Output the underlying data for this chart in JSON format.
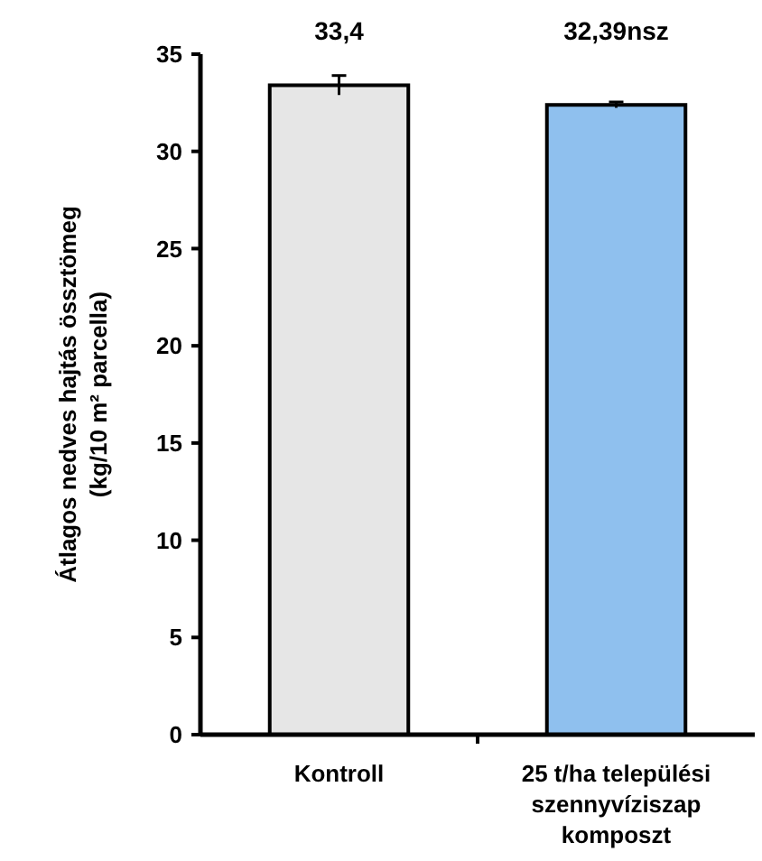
{
  "chart_data": {
    "type": "bar",
    "categories": [
      "Kontroll",
      "25 t/ha települési szennyvíziszap komposzt"
    ],
    "values": [
      33.4,
      32.39
    ],
    "colors": [
      "#e6e6e6",
      "#8fc0ee"
    ],
    "errors": [
      0.5,
      0.15
    ],
    "value_labels": [
      "33,4",
      "32,39nsz"
    ],
    "ylabel": "Átlagos nedves hajtás össztömeg (kg/10 m² parcella)",
    "ylim": [
      0,
      35
    ],
    "yticks": [
      0,
      5,
      10,
      15,
      20,
      25,
      30,
      35
    ],
    "grid": false
  }
}
